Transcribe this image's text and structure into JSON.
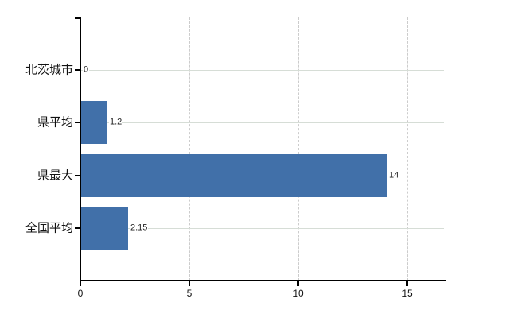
{
  "chart_data": {
    "type": "bar",
    "orientation": "horizontal",
    "title": "",
    "xlabel": "",
    "ylabel": "",
    "categories": [
      "北茨城市",
      "県平均",
      "県最大",
      "全国平均"
    ],
    "values": [
      0,
      1.2,
      14,
      2.15
    ],
    "value_labels": [
      "0",
      "1.2",
      "14",
      "2.15"
    ],
    "xlim": [
      0,
      16.75
    ],
    "x_ticks": [
      0,
      5,
      10,
      15
    ],
    "x_tick_labels": [
      "0",
      "5",
      "10",
      "15"
    ],
    "legend": "none",
    "grid": {
      "vertical_gridlines": "dashed",
      "category_row_lines": "solid",
      "top_border": "dashed"
    },
    "colors": {
      "bar": "#4170a9",
      "axis": "#000000",
      "vertical_grid": "#cccccc",
      "row_grid": "#d6ddd6",
      "text": "#111111",
      "value_text": "#222222",
      "background": "#ffffff"
    }
  }
}
